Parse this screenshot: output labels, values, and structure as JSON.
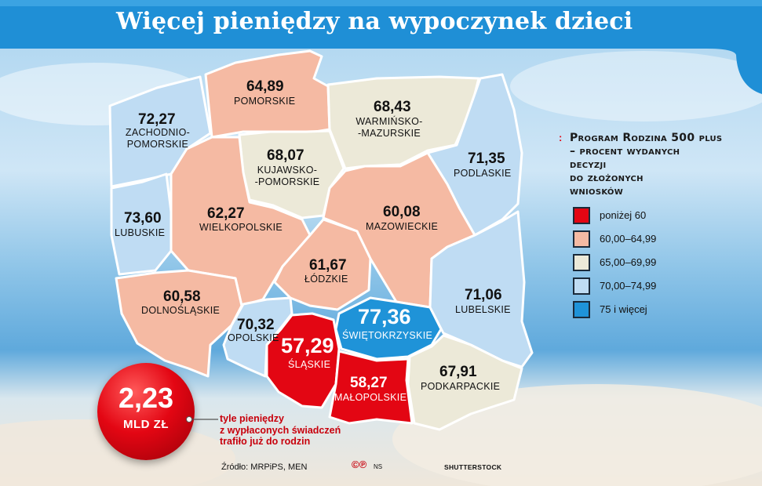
{
  "title": "Więcej pieniędzy na wypoczynek dzieci",
  "colors": {
    "below_60": "#e30613",
    "r60_65": "#f5baa3",
    "r65_70": "#ece9d8",
    "r70_75": "#bfdcf3",
    "r75_plus": "#1f93d8",
    "accent": "#e30613",
    "title_bar": "#1f8fd6"
  },
  "regions": [
    {
      "id": "zachodniopomorskie",
      "value": "72,27",
      "name_lines": [
        "ZACHODNIO-",
        "POMORSKIE"
      ],
      "category": "70,00–74,99"
    },
    {
      "id": "pomorskie",
      "value": "64,89",
      "name_lines": [
        "POMORSKIE"
      ],
      "category": "60,00–64,99"
    },
    {
      "id": "warminsko-mazurskie",
      "value": "68,43",
      "name_lines": [
        "WARMIŃSKO-",
        "-MAZURSKIE"
      ],
      "category": "65,00–69,99"
    },
    {
      "id": "kujawsko-pomorskie",
      "value": "68,07",
      "name_lines": [
        "KUJAWSKO-",
        "-POMORSKIE"
      ],
      "category": "65,00–69,99"
    },
    {
      "id": "podlaskie",
      "value": "71,35",
      "name_lines": [
        "PODLASKIE"
      ],
      "category": "70,00–74,99"
    },
    {
      "id": "lubuskie",
      "value": "73,60",
      "name_lines": [
        "LUBUSKIE"
      ],
      "category": "70,00–74,99"
    },
    {
      "id": "wielkopolskie",
      "value": "62,27",
      "name_lines": [
        "WIELKOPOLSKIE"
      ],
      "category": "60,00–64,99"
    },
    {
      "id": "mazowieckie",
      "value": "60,08",
      "name_lines": [
        "MAZOWIECKIE"
      ],
      "category": "60,00–64,99"
    },
    {
      "id": "lodzkie",
      "value": "61,67",
      "name_lines": [
        "ŁÓDZKIE"
      ],
      "category": "60,00–64,99"
    },
    {
      "id": "dolnoslaskie",
      "value": "60,58",
      "name_lines": [
        "DOLNOŚLĄSKIE"
      ],
      "category": "60,00–64,99"
    },
    {
      "id": "opolskie",
      "value": "70,32",
      "name_lines": [
        "OPOLSKIE"
      ],
      "category": "70,00–74,99"
    },
    {
      "id": "slaskie",
      "value": "57,29",
      "name_lines": [
        "ŚLĄSKIE"
      ],
      "category": "poniżej 60"
    },
    {
      "id": "swietokrzyskie",
      "value": "77,36",
      "name_lines": [
        "ŚWIĘTOKRZYSKIE"
      ],
      "category": "75 i więcej"
    },
    {
      "id": "lubelskie",
      "value": "71,06",
      "name_lines": [
        "LUBELSKIE"
      ],
      "category": "70,00–74,99"
    },
    {
      "id": "malopolskie",
      "value": "58,27",
      "name_lines": [
        "MAŁOPOLSKIE"
      ],
      "category": "poniżej 60"
    },
    {
      "id": "podkarpackie",
      "value": "67,91",
      "name_lines": [
        "PODKARPACKIE"
      ],
      "category": "65,00–69,99"
    }
  ],
  "legend": {
    "bullet": ":",
    "title_lines": [
      "Program Rodzina 500 plus",
      "– procent wydanych",
      "decyzji",
      "do złożonych",
      "wniosków"
    ],
    "items": [
      {
        "label": "poniżej 60",
        "color": "#e30613"
      },
      {
        "label": "60,00–64,99",
        "color": "#f5baa3"
      },
      {
        "label": "65,00–69,99",
        "color": "#ece9d8"
      },
      {
        "label": "70,00–74,99",
        "color": "#bfdcf3"
      },
      {
        "label": "75 i więcej",
        "color": "#1f93d8"
      }
    ]
  },
  "highlight": {
    "value": "2,23",
    "unit": "MLD ZŁ",
    "note_lines": [
      "tyle pieniędzy",
      "z wypłaconych świadczeń",
      "trafiło już do rodzin"
    ]
  },
  "footer": {
    "source": "Źródło: MRPiPS, MEN",
    "copyright": "©℗",
    "ns": "NS",
    "credit": "SHUTTERSTOCK"
  }
}
